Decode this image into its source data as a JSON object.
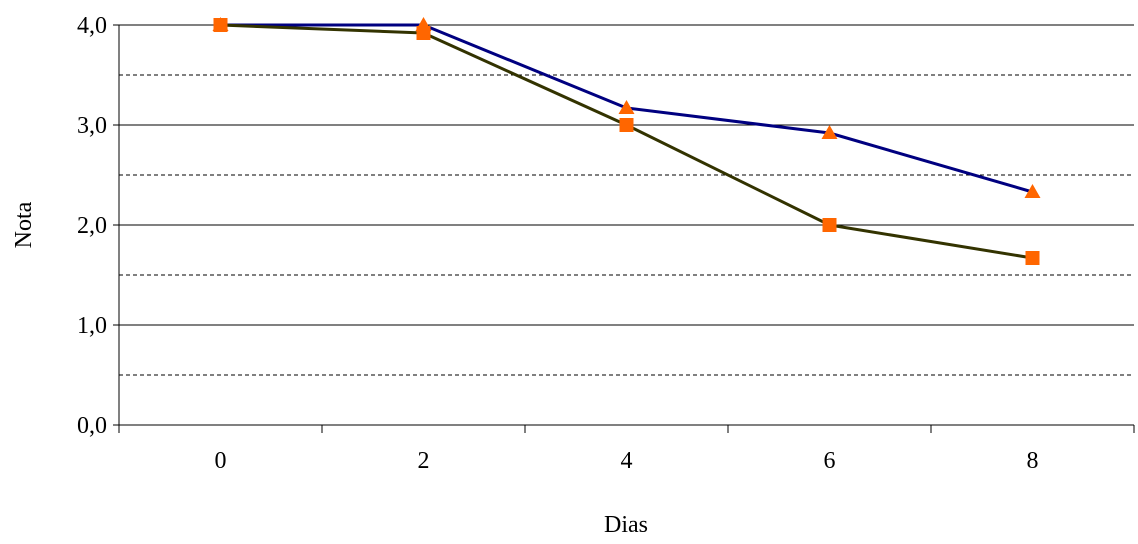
{
  "chart_data": {
    "type": "line",
    "title": "",
    "xlabel": "Dias",
    "ylabel": "Nota",
    "x": [
      0,
      2,
      4,
      6,
      8
    ],
    "x_tick_labels": [
      "0",
      "2",
      "4",
      "6",
      "8"
    ],
    "y_tick_labels": [
      "0,0",
      "1,0",
      "2,0",
      "3,0",
      "4,0"
    ],
    "ylim": [
      0,
      4
    ],
    "grid": {
      "major_solid_y": [
        1,
        2,
        3,
        4
      ],
      "minor_dashed_y": [
        0.5,
        1.5,
        2.5,
        3.5
      ]
    },
    "legend": "none",
    "series": [
      {
        "color": "#000080",
        "line_color": "#000080",
        "marker": "triangle",
        "marker_color": "#FF6600",
        "values": [
          4.0,
          4.0,
          3.17,
          2.92,
          2.33
        ]
      },
      {
        "color": "#333300",
        "line_color": "#333300",
        "marker": "square",
        "marker_color": "#FF6600",
        "values": [
          4.0,
          3.92,
          3.0,
          2.0,
          1.67
        ]
      }
    ]
  }
}
